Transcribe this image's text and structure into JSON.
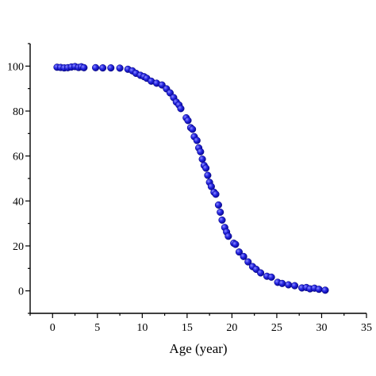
{
  "chart_data": {
    "type": "scatter",
    "title": "",
    "xlabel": "Age (year)",
    "ylabel": "",
    "xlim": [
      -2.5,
      35
    ],
    "ylim": [
      -10,
      110
    ],
    "xticks": [
      "0",
      "5",
      "10",
      "15",
      "20",
      "25",
      "30",
      "35"
    ],
    "yticks": [
      "0",
      "20",
      "40",
      "60",
      "80",
      "100"
    ],
    "xtick_values": [
      0,
      5,
      10,
      15,
      20,
      25,
      30,
      35
    ],
    "ytick_values": [
      0,
      20,
      40,
      60,
      80,
      100
    ],
    "marker_color": "#1f1fd6",
    "grid": false,
    "series": [
      {
        "points": [
          [
            0.5,
            99.5
          ],
          [
            0.9,
            99.4
          ],
          [
            1.3,
            99.2
          ],
          [
            1.7,
            99.3
          ],
          [
            2.1,
            99.6
          ],
          [
            2.5,
            99.8
          ],
          [
            2.9,
            99.4
          ],
          [
            3.2,
            99.7
          ],
          [
            3.5,
            99.3
          ],
          [
            4.8,
            99.3
          ],
          [
            5.6,
            99.2
          ],
          [
            6.5,
            99.2
          ],
          [
            7.5,
            99.1
          ],
          [
            8.4,
            98.6
          ],
          [
            8.9,
            97.9
          ],
          [
            9.3,
            96.8
          ],
          [
            9.8,
            95.9
          ],
          [
            10.2,
            95.3
          ],
          [
            10.5,
            94.6
          ],
          [
            11.0,
            93.3
          ],
          [
            11.6,
            92.4
          ],
          [
            12.2,
            91.6
          ],
          [
            12.7,
            89.9
          ],
          [
            13.1,
            88.1
          ],
          [
            13.5,
            86.0
          ],
          [
            13.8,
            84.0
          ],
          [
            14.1,
            82.7
          ],
          [
            14.3,
            81.1
          ],
          [
            14.9,
            77.0
          ],
          [
            15.1,
            75.8
          ],
          [
            15.4,
            72.6
          ],
          [
            15.6,
            71.9
          ],
          [
            15.8,
            68.6
          ],
          [
            16.1,
            66.9
          ],
          [
            16.3,
            63.6
          ],
          [
            16.5,
            61.9
          ],
          [
            16.7,
            58.6
          ],
          [
            16.9,
            55.8
          ],
          [
            17.1,
            54.6
          ],
          [
            17.3,
            51.4
          ],
          [
            17.5,
            48.3
          ],
          [
            17.7,
            46.4
          ],
          [
            18.0,
            43.9
          ],
          [
            18.2,
            43.0
          ],
          [
            18.5,
            38.2
          ],
          [
            18.7,
            35.0
          ],
          [
            18.9,
            31.5
          ],
          [
            19.2,
            28.2
          ],
          [
            19.4,
            26.2
          ],
          [
            19.6,
            24.3
          ],
          [
            20.2,
            21.2
          ],
          [
            20.4,
            20.7
          ],
          [
            20.8,
            17.3
          ],
          [
            21.3,
            15.3
          ],
          [
            21.8,
            12.9
          ],
          [
            22.3,
            10.8
          ],
          [
            22.7,
            9.6
          ],
          [
            23.2,
            8.0
          ],
          [
            23.9,
            6.5
          ],
          [
            24.4,
            6.1
          ],
          [
            25.1,
            3.8
          ],
          [
            25.6,
            3.3
          ],
          [
            26.3,
            2.7
          ],
          [
            27.0,
            2.3
          ],
          [
            27.8,
            1.3
          ],
          [
            28.3,
            1.5
          ],
          [
            28.7,
            0.9
          ],
          [
            29.2,
            1.2
          ],
          [
            29.7,
            0.7
          ],
          [
            30.4,
            0.3
          ]
        ]
      }
    ]
  }
}
